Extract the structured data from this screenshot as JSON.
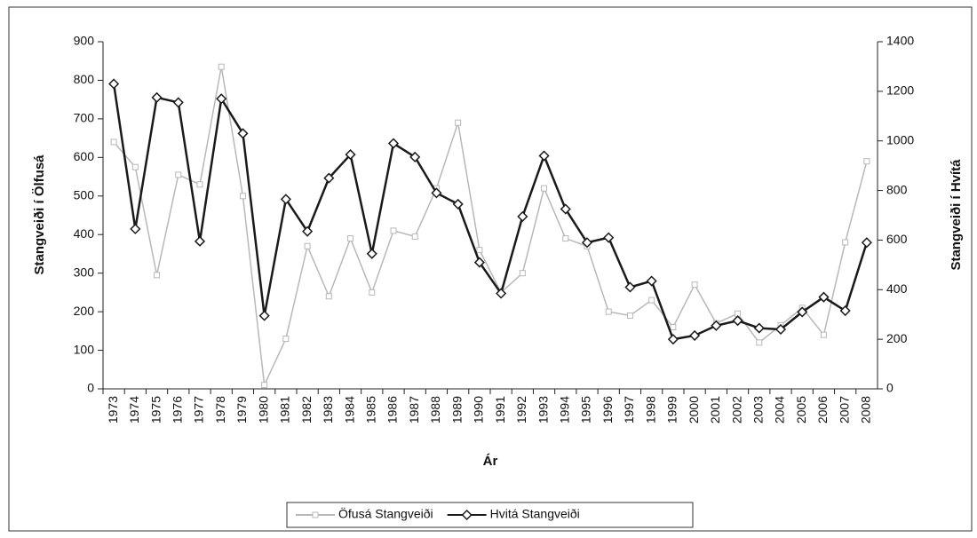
{
  "chart_data": {
    "type": "line",
    "x_label": "Ár",
    "y_label": "Stangveiði í Ölfusá",
    "y2_label": "Stangveiði í Hvítá",
    "categories": [
      "1973",
      "1974",
      "1975",
      "1976",
      "1977",
      "1978",
      "1979",
      "1980",
      "1981",
      "1982",
      "1983",
      "1984",
      "1985",
      "1986",
      "1987",
      "1988",
      "1989",
      "1990",
      "1991",
      "1992",
      "1993",
      "1994",
      "1995",
      "1996",
      "1997",
      "1998",
      "1999",
      "2000",
      "2001",
      "2002",
      "2003",
      "2004",
      "2005",
      "2006",
      "2007",
      "2008"
    ],
    "series": [
      {
        "name": "Öfusá Stangveiði",
        "color": "#b8b8b8",
        "axis": "y",
        "values": [
          640,
          575,
          295,
          555,
          530,
          835,
          500,
          10,
          130,
          370,
          240,
          390,
          250,
          410,
          395,
          520,
          690,
          360,
          250,
          300,
          520,
          390,
          370,
          200,
          190,
          230,
          160,
          270,
          170,
          195,
          120,
          165,
          210,
          140,
          380,
          590
        ]
      },
      {
        "name": "Hvitá Stangveiði",
        "color": "#1a1a1a",
        "axis": "y2",
        "values": [
          1230,
          645,
          1175,
          1155,
          595,
          1170,
          1030,
          295,
          765,
          635,
          850,
          945,
          545,
          990,
          935,
          790,
          745,
          510,
          385,
          695,
          940,
          725,
          590,
          610,
          410,
          435,
          200,
          215,
          255,
          275,
          245,
          240,
          310,
          370,
          315,
          590
        ]
      }
    ],
    "ylim": [
      0,
      900
    ],
    "yticks": [
      0,
      100,
      200,
      300,
      400,
      500,
      600,
      700,
      800,
      900
    ],
    "y2lim": [
      0,
      1400
    ],
    "y2ticks": [
      0,
      200,
      400,
      600,
      800,
      1000,
      1200,
      1400
    ],
    "legend": "bottom"
  }
}
